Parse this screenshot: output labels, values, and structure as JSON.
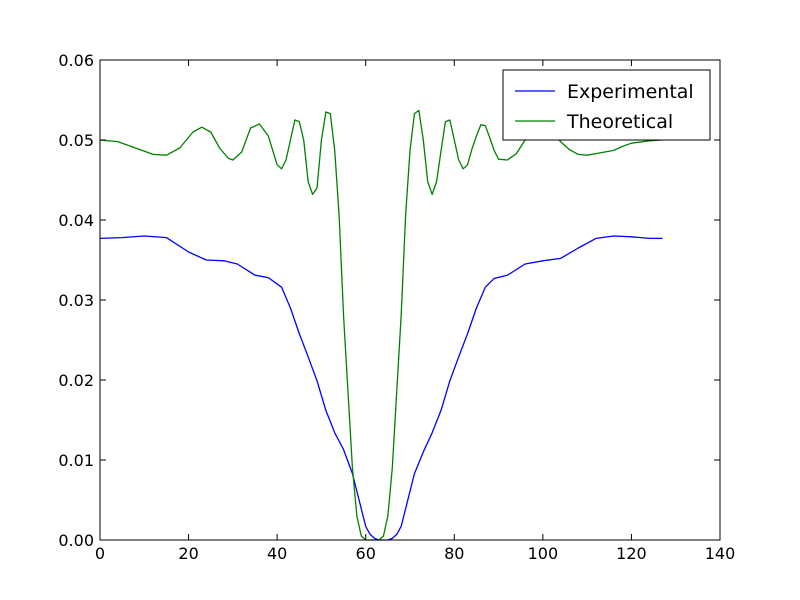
{
  "chart_data": {
    "type": "line",
    "title": "",
    "xlabel": "",
    "ylabel": "",
    "xlim": [
      0,
      140
    ],
    "ylim": [
      0.0,
      0.06
    ],
    "x_ticks": [
      "0",
      "20",
      "40",
      "60",
      "80",
      "100",
      "120",
      "140"
    ],
    "y_ticks": [
      "0.00",
      "0.01",
      "0.02",
      "0.03",
      "0.04",
      "0.05",
      "0.06"
    ],
    "grid": false,
    "legend_position": "upper-right",
    "series": [
      {
        "name": "Experimental",
        "color": "#0000ff",
        "x": [
          0,
          5,
          10,
          15,
          20,
          24,
          28,
          31,
          35,
          38,
          41,
          43,
          45,
          47,
          49,
          51,
          53,
          55,
          57,
          59,
          60,
          61,
          62,
          63,
          64,
          65,
          66,
          67,
          68,
          69,
          71,
          73,
          75,
          77,
          79,
          81,
          83,
          85,
          87,
          89,
          92,
          96,
          100,
          104,
          108,
          112,
          116,
          120,
          124,
          127
        ],
        "y": [
          0.0377,
          0.0378,
          0.038,
          0.0378,
          0.036,
          0.035,
          0.0349,
          0.0345,
          0.0331,
          0.0328,
          0.0316,
          0.029,
          0.0258,
          0.0229,
          0.0199,
          0.0162,
          0.0134,
          0.0113,
          0.0083,
          0.0039,
          0.0017,
          0.0007,
          0.0002,
          0.0,
          0.0,
          0.0,
          0.0002,
          0.0007,
          0.0017,
          0.0039,
          0.0083,
          0.011,
          0.0134,
          0.0162,
          0.0199,
          0.0229,
          0.0258,
          0.029,
          0.0316,
          0.0327,
          0.0331,
          0.0345,
          0.0349,
          0.0352,
          0.0365,
          0.0377,
          0.038,
          0.0379,
          0.0377,
          0.0377
        ]
      },
      {
        "name": "Theoretical",
        "color": "#008000",
        "x": [
          0,
          4,
          8,
          12,
          15,
          18,
          21,
          23,
          25,
          27,
          29,
          30,
          32,
          34,
          36,
          38,
          40,
          41,
          42,
          43,
          44,
          45,
          46,
          47,
          48,
          49,
          50,
          51,
          52,
          53,
          54,
          55,
          56,
          57,
          58,
          59,
          60,
          61,
          62,
          63,
          64,
          65,
          66,
          67,
          68,
          69,
          70,
          71,
          72,
          73,
          74,
          75,
          76,
          77,
          78,
          79,
          80,
          81,
          82,
          83,
          84,
          85,
          86,
          87,
          88,
          89,
          90,
          92,
          94,
          96,
          98,
          100,
          102,
          104,
          106,
          108,
          110,
          112,
          114,
          116,
          118,
          120,
          124,
          127
        ],
        "y": [
          0.05,
          0.0498,
          0.049,
          0.0482,
          0.0481,
          0.049,
          0.051,
          0.0516,
          0.051,
          0.049,
          0.0477,
          0.0475,
          0.0485,
          0.0515,
          0.052,
          0.0505,
          0.0469,
          0.0464,
          0.0475,
          0.05,
          0.0525,
          0.0523,
          0.05,
          0.0448,
          0.0432,
          0.044,
          0.05,
          0.0535,
          0.0533,
          0.0487,
          0.0405,
          0.028,
          0.0185,
          0.009,
          0.003,
          0.0005,
          0.0,
          0.0,
          0.0,
          0.0,
          0.0005,
          0.003,
          0.009,
          0.0185,
          0.028,
          0.0405,
          0.0487,
          0.0533,
          0.0537,
          0.05,
          0.0448,
          0.0432,
          0.0448,
          0.0486,
          0.0523,
          0.0525,
          0.05,
          0.0475,
          0.0464,
          0.0469,
          0.0489,
          0.0505,
          0.0519,
          0.0518,
          0.0503,
          0.0487,
          0.0476,
          0.0475,
          0.0483,
          0.05,
          0.051,
          0.052,
          0.051,
          0.0498,
          0.0488,
          0.0482,
          0.0481,
          0.0483,
          0.0485,
          0.0487,
          0.0492,
          0.0496,
          0.0499,
          0.05
        ]
      }
    ]
  }
}
